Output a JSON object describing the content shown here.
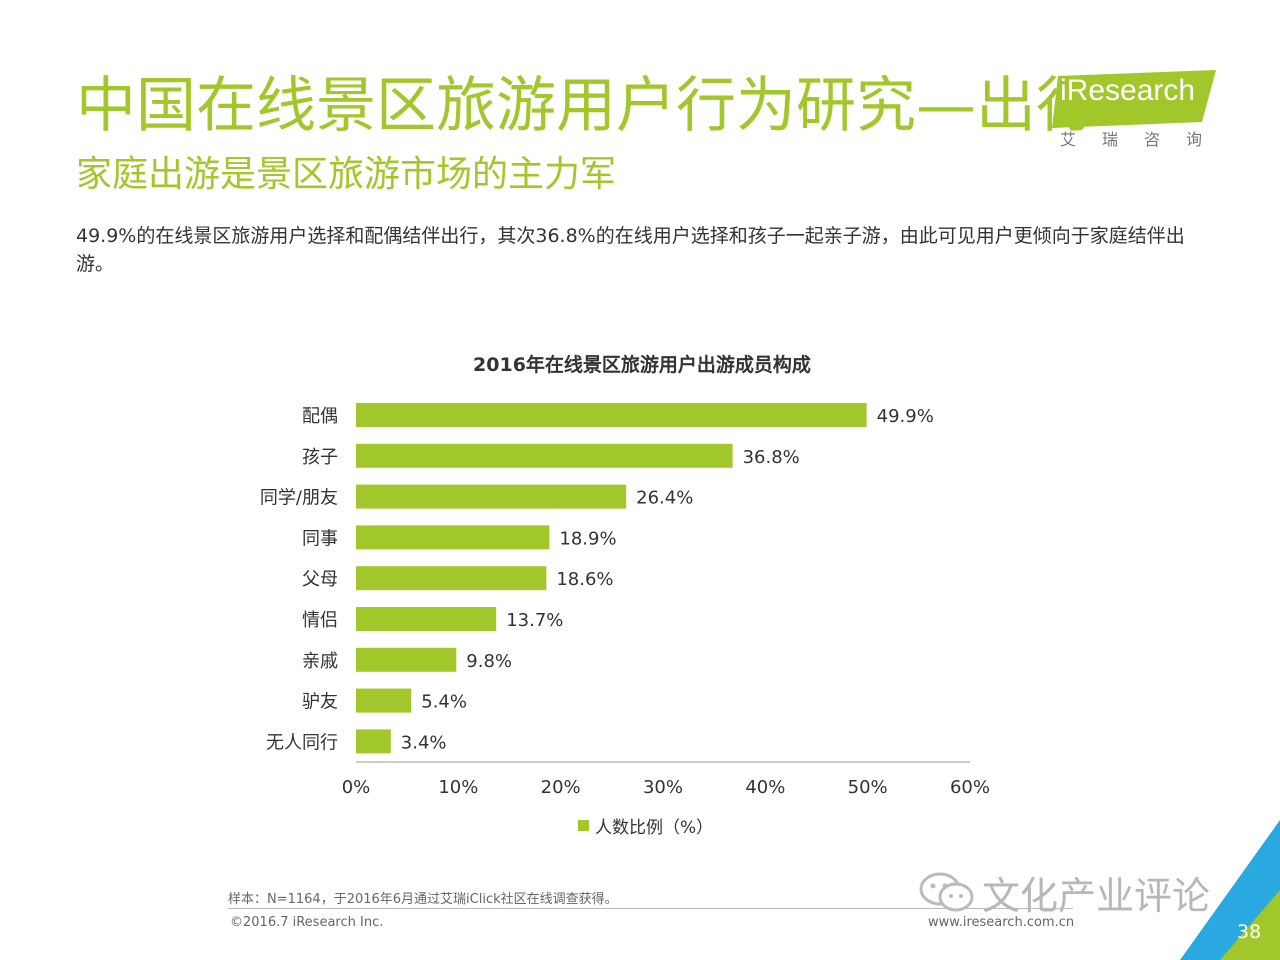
{
  "header": {
    "title": "中国在线景区旅游用户行为研究—出行",
    "subtitle": "家庭出游是景区旅游市场的主力军",
    "intro": "49.9%的在线景区旅游用户选择和配偶结伴出行，其次36.8%的在线用户选择和孩子一起亲子游，由此可见用户更倾向于家庭结伴出游。"
  },
  "logo": {
    "brand": "iResearch",
    "sub": "艾瑞咨询"
  },
  "chart_data": {
    "type": "bar",
    "orientation": "horizontal",
    "title": "2016年在线景区旅游用户出游成员构成",
    "categories": [
      "配偶",
      "孩子",
      "同学/朋友",
      "同事",
      "父母",
      "情侣",
      "亲戚",
      "驴友",
      "无人同行"
    ],
    "series": [
      {
        "name": "人数比例（%）",
        "values": [
          49.9,
          36.8,
          26.4,
          18.9,
          18.6,
          13.7,
          9.8,
          5.4,
          3.4
        ]
      }
    ],
    "value_labels": [
      "49.9%",
      "36.8%",
      "26.4%",
      "18.9%",
      "18.6%",
      "13.7%",
      "9.8%",
      "5.4%",
      "3.4%"
    ],
    "xlim": [
      0,
      60
    ],
    "xticks": [
      "0%",
      "10%",
      "20%",
      "30%",
      "40%",
      "50%",
      "60%"
    ],
    "xtick_values": [
      0,
      10,
      20,
      30,
      40,
      50,
      60
    ],
    "grid": false,
    "legend_position": "bottom",
    "bar_color": "#a2c72a"
  },
  "footer": {
    "note": "样本：N=1164，于2016年6月通过艾瑞iClick社区在线调查获得。",
    "copyright": "©2016.7 iResearch Inc.",
    "website": "www.iresearch.com.cn",
    "watermark": "文化产业评论",
    "page": "38"
  },
  "colors": {
    "accent": "#a2c72a",
    "corner_blue": "#29a9e0",
    "corner_green": "#a2c72a"
  }
}
